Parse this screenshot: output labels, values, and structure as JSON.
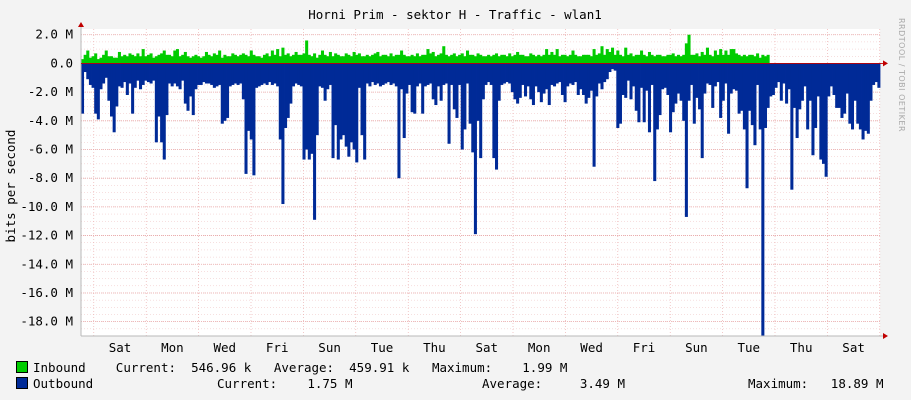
{
  "colors": {
    "inbound": "#00cc00",
    "outbound": "#002a97",
    "grid": "#e8a5a5",
    "frame": "#b8b8b8",
    "bg": "#ffffff",
    "axis": "#c00000"
  },
  "watermark": "RRDTOOL / TOBI OETIKER",
  "chart_data": {
    "type": "area",
    "title": "Horni Prim - sektor H - Traffic - wlan1",
    "ylabel": "bits per second",
    "ylim": [
      -19000000,
      2400000
    ],
    "yticks": [
      {
        "v": 2000000,
        "label": "2.0 M"
      },
      {
        "v": 0,
        "label": "0.0"
      },
      {
        "v": -2000000,
        "label": "-2.0 M"
      },
      {
        "v": -4000000,
        "label": "-4.0 M"
      },
      {
        "v": -6000000,
        "label": "-6.0 M"
      },
      {
        "v": -8000000,
        "label": "-8.0 M"
      },
      {
        "v": -10000000,
        "label": "-10.0 M"
      },
      {
        "v": -12000000,
        "label": "-12.0 M"
      },
      {
        "v": -14000000,
        "label": "-14.0 M"
      },
      {
        "v": -16000000,
        "label": "-16.0 M"
      },
      {
        "v": -18000000,
        "label": "-18.0 M"
      }
    ],
    "xticks": [
      "Sat",
      "Mon",
      "Wed",
      "Fri",
      "Sun",
      "Tue",
      "Thu",
      "Sat",
      "Mon",
      "Wed",
      "Fri",
      "Sun",
      "Tue",
      "Thu",
      "Sat"
    ],
    "series": [
      {
        "name": "Inbound",
        "values": [
          0.3,
          0.6,
          0.9,
          0.4,
          0.5,
          0.7,
          0.3,
          0.4,
          0.6,
          0.9,
          0.5,
          0.5,
          0.4,
          0.4,
          0.8,
          0.5,
          0.6,
          0.5,
          0.7,
          0.6,
          0.5,
          0.7,
          0.5,
          1.0,
          0.5,
          0.6,
          0.7,
          0.4,
          0.5,
          0.6,
          0.7,
          0.9,
          0.6,
          0.6,
          0.5,
          0.9,
          1.0,
          0.5,
          0.6,
          0.8,
          0.5,
          0.4,
          0.5,
          0.6,
          0.5,
          0.4,
          0.5,
          0.8,
          0.6,
          0.5,
          0.7,
          0.6,
          0.9,
          0.4,
          0.6,
          0.5,
          0.5,
          0.7,
          0.6,
          0.5,
          0.6,
          0.7,
          0.6,
          0.5,
          0.9,
          0.6,
          0.5,
          0.5,
          0.4,
          0.6,
          0.7,
          0.5,
          0.9,
          0.6,
          1.0,
          0.5,
          1.1,
          0.6,
          0.7,
          0.5,
          0.6,
          0.8,
          0.6,
          0.6,
          0.7,
          1.6,
          0.6,
          0.5,
          0.7,
          0.4,
          0.6,
          0.9,
          0.6,
          0.5,
          0.8,
          0.5,
          0.7,
          0.6,
          0.5,
          0.5,
          0.7,
          0.6,
          0.5,
          0.8,
          0.6,
          0.7,
          0.5,
          0.5,
          0.6,
          0.5,
          0.6,
          0.7,
          0.8,
          0.5,
          0.6,
          0.6,
          0.5,
          0.7,
          0.5,
          0.6,
          0.6,
          0.9,
          0.6,
          0.5,
          0.5,
          0.6,
          0.5,
          0.7,
          0.5,
          0.6,
          0.6,
          1.0,
          0.7,
          0.8,
          0.5,
          0.6,
          0.7,
          1.2,
          0.6,
          0.5,
          0.6,
          0.7,
          0.5,
          0.6,
          0.7,
          0.5,
          0.9,
          0.6,
          0.6,
          0.5,
          0.7,
          0.6,
          0.5,
          0.5,
          0.6,
          0.5,
          0.6,
          0.7,
          0.5,
          0.6,
          0.6,
          0.5,
          0.7,
          0.5,
          0.6,
          0.8,
          0.6,
          0.6,
          0.5,
          0.5,
          0.7,
          0.6,
          0.5,
          0.6,
          0.5,
          0.6,
          1.0,
          0.6,
          0.8,
          0.6,
          1.0,
          0.5,
          0.6,
          0.6,
          0.5,
          0.6,
          0.9,
          0.6,
          0.5,
          0.5,
          0.6,
          0.6,
          0.6,
          0.5,
          1.0,
          0.6,
          0.7,
          1.2,
          0.6,
          1.0,
          0.8,
          1.1,
          0.6,
          0.9,
          0.6,
          0.5,
          1.1,
          0.6,
          0.7,
          0.5,
          0.6,
          0.6,
          0.9,
          0.6,
          0.5,
          0.8,
          0.6,
          0.5,
          0.6,
          0.6,
          0.5,
          0.5,
          0.6,
          0.6,
          0.7,
          0.5,
          0.6,
          0.5,
          0.6,
          1.4,
          2.0,
          0.6,
          0.6,
          0.7,
          0.5,
          0.8,
          0.6,
          1.1,
          0.6,
          0.5,
          0.9,
          0.6,
          1.0,
          0.6,
          0.9,
          0.6,
          1.0,
          1.0,
          0.7,
          0.6,
          0.5,
          0.6,
          0.5,
          0.6,
          0.6,
          0.5,
          0.7,
          0.4,
          0.6,
          0.5,
          0.6
        ],
        "total": 262
      },
      {
        "name": "Outbound",
        "values": [
          -3.5,
          -0.6,
          -1.1,
          -1.5,
          -1.7,
          -3.5,
          -3.9,
          -1.8,
          -1.4,
          -1.0,
          -2.6,
          -3.7,
          -4.8,
          -3.0,
          -1.6,
          -1.7,
          -1.3,
          -2.2,
          -1.4,
          -3.5,
          -1.7,
          -1.2,
          -1.8,
          -1.5,
          -1.2,
          -1.3,
          -1.4,
          -1.2,
          -5.5,
          -3.7,
          -5.5,
          -6.7,
          -3.6,
          -1.4,
          -1.6,
          -1.4,
          -1.6,
          -1.8,
          -1.2,
          -2.8,
          -3.3,
          -2.3,
          -3.6,
          -1.8,
          -1.5,
          -1.5,
          -1.3,
          -1.4,
          -1.4,
          -1.5,
          -1.7,
          -1.6,
          -1.5,
          -4.2,
          -4.0,
          -3.8,
          -1.6,
          -1.5,
          -1.4,
          -1.5,
          -1.4,
          -2.5,
          -7.7,
          -4.7,
          -5.3,
          -7.8,
          -1.7,
          -1.6,
          -1.5,
          -1.4,
          -1.5,
          -1.3,
          -1.5,
          -1.4,
          -1.6,
          -5.3,
          -9.8,
          -4.5,
          -3.8,
          -2.8,
          -1.6,
          -1.4,
          -1.5,
          -1.6,
          -6.7,
          -6.0,
          -6.7,
          -6.3,
          -10.9,
          -5.0,
          -1.6,
          -1.7,
          -2.6,
          -1.8,
          -1.5,
          -6.6,
          -4.3,
          -6.7,
          -5.3,
          -5.0,
          -5.8,
          -6.5,
          -5.5,
          -6.0,
          -6.9,
          -1.7,
          -5.0,
          -6.7,
          -1.4,
          -1.6,
          -1.3,
          -1.5,
          -1.4,
          -1.6,
          -1.5,
          -1.4,
          -1.3,
          -1.5,
          -1.4,
          -1.6,
          -8.0,
          -1.8,
          -5.2,
          -2.1,
          -1.5,
          -3.4,
          -3.5,
          -1.6,
          -1.4,
          -3.5,
          -1.6,
          -1.5,
          -1.4,
          -2.5,
          -2.9,
          -1.6,
          -2.6,
          -1.5,
          -1.4,
          -5.6,
          -1.5,
          -3.2,
          -3.8,
          -1.5,
          -6.0,
          -4.6,
          -1.4,
          -4.2,
          -6.2,
          -11.9,
          -4.0,
          -6.6,
          -2.5,
          -1.5,
          -1.3,
          -1.5,
          -6.6,
          -7.4,
          -2.6,
          -1.5,
          -1.4,
          -1.3,
          -1.4,
          -2.0,
          -2.5,
          -2.8,
          -2.4,
          -1.5,
          -2.3,
          -1.6,
          -2.5,
          -2.9,
          -1.6,
          -2.0,
          -2.7,
          -2.1,
          -1.8,
          -2.9,
          -1.5,
          -1.6,
          -1.4,
          -1.3,
          -2.2,
          -2.7,
          -1.6,
          -1.4,
          -1.5,
          -1.3,
          -2.2,
          -1.8,
          -2.2,
          -2.8,
          -2.4,
          -1.9,
          -7.2,
          -2.3,
          -1.4,
          -1.8,
          -1.3,
          -1.1,
          -0.6,
          -0.4,
          -0.5,
          -4.5,
          -4.2,
          -2.2,
          -2.4,
          -1.2,
          -2.5,
          -1.6,
          -3.3,
          -4.1,
          -1.7,
          -4.1,
          -1.9,
          -4.8,
          -1.5,
          -8.2,
          -4.6,
          -3.6,
          -1.8,
          -1.7,
          -2.2,
          -4.8,
          -3.4,
          -2.8,
          -2.1,
          -2.6,
          -4.0,
          -10.7,
          -2.6,
          -1.5,
          -4.2,
          -2.4,
          -3.2,
          -6.6,
          -2.1,
          -1.4,
          -1.5,
          -3.1,
          -1.6,
          -1.3,
          -3.8,
          -2.6,
          -1.4,
          -4.9,
          -2.1,
          -1.8,
          -1.9,
          -3.5,
          -3.3,
          -4.6,
          -8.7,
          -3.3,
          -4.3,
          -5.7,
          -1.5,
          -4.6,
          -19.0,
          -4.5,
          -3.1,
          -2.3,
          -2.2,
          -1.7,
          -1.3,
          -2.6,
          -1.4,
          -2.8,
          -1.8,
          -8.8,
          -3.1,
          -5.2,
          -3.2,
          -2.6,
          -1.6,
          -4.6,
          -2.6,
          -6.4,
          -4.5,
          -2.3,
          -6.7,
          -7.0,
          -7.9,
          -2.3,
          -1.6,
          -2.2,
          -3.1,
          -3.1,
          -3.8,
          -3.5,
          -2.1,
          -4.2,
          -4.6,
          -2.6,
          -4.2,
          -4.6,
          -5.3,
          -4.7,
          -4.9,
          -2.6,
          -1.5,
          -1.3,
          -1.7
        ]
      }
    ],
    "unit_scale": 1000000
  },
  "legend": {
    "inbound": {
      "label": "Inbound",
      "current_label": "Current:",
      "current": "546.96 k",
      "average_label": "Average:",
      "average": "459.91 k",
      "maximum_label": "Maximum:",
      "maximum": "1.99 M"
    },
    "outbound": {
      "label": "Outbound",
      "current_label": "Current:",
      "current": "1.75 M",
      "average_label": "Average:",
      "average": "3.49 M",
      "maximum_label": "Maximum:",
      "maximum": "18.89 M"
    }
  }
}
